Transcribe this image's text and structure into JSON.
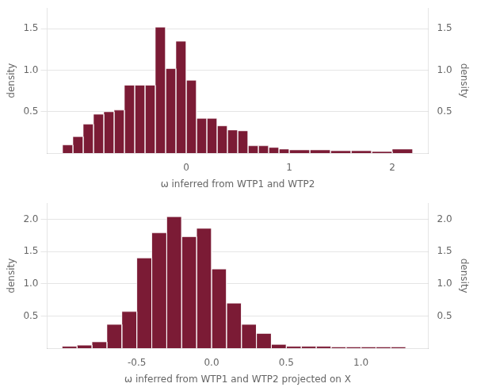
{
  "chart_data": [
    {
      "type": "histogram",
      "bins": [
        -1.2,
        -1.1,
        -1.0,
        -0.9,
        -0.8,
        -0.7,
        -0.6,
        -0.5,
        -0.4,
        -0.3,
        -0.2,
        -0.1,
        0.0,
        0.1,
        0.2,
        0.3,
        0.4,
        0.5,
        0.6,
        0.7,
        0.8,
        0.9,
        1.0,
        1.2,
        1.4,
        1.6,
        1.8,
        2.0,
        2.2
      ],
      "values": [
        0.1,
        0.2,
        0.35,
        0.47,
        0.5,
        0.52,
        0.82,
        0.82,
        0.82,
        1.52,
        1.02,
        1.35,
        0.88,
        0.42,
        0.42,
        0.33,
        0.28,
        0.27,
        0.09,
        0.09,
        0.07,
        0.05,
        0.04,
        0.04,
        0.03,
        0.03,
        0.02,
        0.05
      ],
      "color": "#7B1B35",
      "x_label": "ω inferred from WTP1 and WTP2",
      "y_label": "density",
      "y2_label": "density",
      "xlim": [
        -1.35,
        2.35
      ],
      "xticks": [
        0,
        1,
        2
      ],
      "ylim": [
        0,
        1.75
      ],
      "yticks": [
        0.5,
        {
          "value": 1.0,
          "label": "1.0"
        },
        1.5
      ],
      "y2lim": [
        0,
        1.75
      ],
      "y2ticks": [
        0.5,
        {
          "value": 1.0,
          "label": "1.0"
        },
        1.5
      ],
      "grid": "y"
    },
    {
      "type": "histogram",
      "bins": [
        -1.0,
        -0.9,
        -0.8,
        -0.7,
        -0.6,
        -0.5,
        -0.4,
        -0.3,
        -0.2,
        -0.1,
        0.0,
        0.1,
        0.2,
        0.3,
        0.4,
        0.5,
        0.6,
        0.7,
        0.8,
        0.9,
        1.0,
        1.1,
        1.2,
        1.3
      ],
      "values": [
        0.03,
        0.05,
        0.1,
        0.37,
        0.57,
        1.4,
        1.79,
        2.04,
        1.73,
        1.86,
        1.23,
        0.7,
        0.37,
        0.23,
        0.06,
        0.03,
        0.03,
        0.03,
        0.02,
        0.02,
        0.02,
        0.02,
        0.02
      ],
      "color": "#7B1B35",
      "x_label": "ω inferred from WTP1 and WTP2 projected on Χ",
      "y_label": "density",
      "y2_label": "density",
      "xlim": [
        -1.1,
        1.45
      ],
      "xticks": [
        -0.5,
        {
          "value": 0.0,
          "label": "0.0"
        },
        0.5,
        {
          "value": 1.0,
          "label": "1.0"
        }
      ],
      "ylim": [
        0,
        2.25
      ],
      "yticks": [
        0.5,
        {
          "value": 1.0,
          "label": "1.0"
        },
        1.5,
        {
          "value": 2.0,
          "label": "2.0"
        }
      ],
      "y2lim": [
        0,
        2.25
      ],
      "y2ticks": [
        0.5,
        {
          "value": 1.0,
          "label": "1.0"
        },
        1.5,
        {
          "value": 2.0,
          "label": "2.0"
        }
      ],
      "grid": "y"
    }
  ]
}
